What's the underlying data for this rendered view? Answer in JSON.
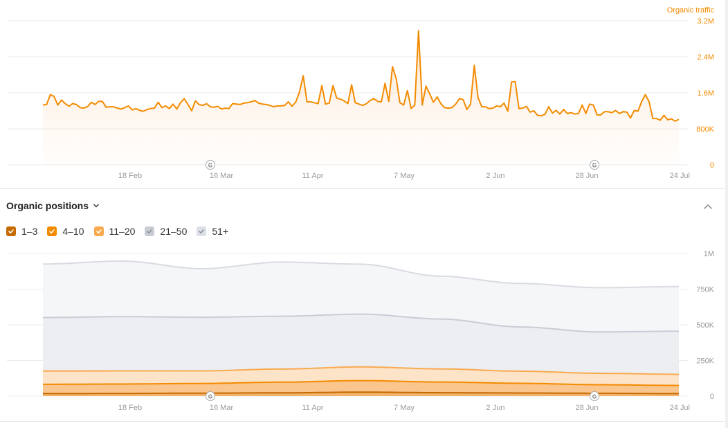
{
  "traffic": {
    "metric_label": "Organic traffic",
    "accent_color": "#f38b00",
    "y_tick_labels": [
      "3.2M",
      "2.4M",
      "1.6M",
      "800K",
      "0"
    ],
    "x_tick_labels": [
      "18 Feb",
      "16 Mar",
      "11 Apr",
      "7 May",
      "2 Jun",
      "28 Jun",
      "24 Jul"
    ],
    "annotation_marker": "G"
  },
  "positions": {
    "title": "Organic positions",
    "legend": [
      {
        "label": "1–3",
        "color": "#c56a00"
      },
      {
        "label": "4–10",
        "color": "#f38b00"
      },
      {
        "label": "11–20",
        "color": "#f9aa4f"
      },
      {
        "label": "21–50",
        "color": "#c8ccd4"
      },
      {
        "label": "51+",
        "color": "#dde0e6"
      }
    ],
    "y_tick_labels": [
      "1M",
      "750K",
      "500K",
      "250K",
      "0"
    ],
    "x_tick_labels": [
      "18 Feb",
      "16 Mar",
      "11 Apr",
      "7 May",
      "2 Jun",
      "28 Jun",
      "24 Jul"
    ],
    "annotation_marker": "G"
  },
  "chart_data": [
    {
      "type": "area",
      "title": "Organic traffic",
      "ylim": [
        0,
        3200000
      ],
      "y_ticks": [
        0,
        800000,
        1600000,
        2400000,
        3200000
      ],
      "x_start": "2024-01-27",
      "x_end": "2024-07-24",
      "grid": true,
      "series": [
        {
          "name": "Organic traffic",
          "values": [
            1330000,
            1340000,
            1560000,
            1520000,
            1330000,
            1440000,
            1360000,
            1300000,
            1360000,
            1340000,
            1270000,
            1260000,
            1290000,
            1390000,
            1340000,
            1410000,
            1410000,
            1280000,
            1290000,
            1290000,
            1260000,
            1240000,
            1270000,
            1310000,
            1220000,
            1250000,
            1210000,
            1190000,
            1230000,
            1250000,
            1260000,
            1390000,
            1270000,
            1310000,
            1250000,
            1350000,
            1240000,
            1380000,
            1470000,
            1340000,
            1200000,
            1420000,
            1340000,
            1320000,
            1360000,
            1290000,
            1280000,
            1300000,
            1240000,
            1260000,
            1250000,
            1360000,
            1350000,
            1340000,
            1370000,
            1380000,
            1400000,
            1430000,
            1370000,
            1350000,
            1340000,
            1320000,
            1290000,
            1310000,
            1310000,
            1320000,
            1400000,
            1300000,
            1400000,
            1620000,
            1980000,
            1400000,
            1400000,
            1380000,
            1360000,
            1760000,
            1350000,
            1370000,
            1760000,
            1480000,
            1460000,
            1420000,
            1360000,
            1780000,
            1380000,
            1350000,
            1320000,
            1360000,
            1430000,
            1470000,
            1410000,
            1400000,
            1810000,
            1410000,
            2180000,
            1910000,
            1380000,
            1330000,
            1650000,
            1250000,
            1330000,
            2980000,
            1330000,
            1750000,
            1580000,
            1390000,
            1510000,
            1360000,
            1270000,
            1260000,
            1270000,
            1350000,
            1470000,
            1450000,
            1230000,
            1350000,
            2210000,
            1490000,
            1290000,
            1290000,
            1250000,
            1260000,
            1310000,
            1290000,
            1370000,
            1190000,
            1840000,
            1850000,
            1250000,
            1260000,
            1300000,
            1170000,
            1200000,
            1100000,
            1090000,
            1120000,
            1290000,
            1150000,
            1210000,
            1130000,
            1230000,
            1140000,
            1160000,
            1130000,
            1140000,
            1330000,
            1140000,
            1350000,
            1330000,
            1110000,
            1110000,
            1180000,
            1180000,
            1160000,
            1210000,
            1140000,
            1180000,
            1170000,
            1040000,
            1210000,
            1190000,
            1410000,
            1560000,
            1400000,
            1030000,
            1030000,
            990000,
            1100000,
            1000000,
            1020000,
            970000,
            1010000
          ]
        }
      ],
      "annotations": [
        "G",
        "G"
      ]
    },
    {
      "type": "area",
      "title": "Organic positions",
      "stacked": true,
      "ylim": [
        0,
        1000000
      ],
      "y_ticks": [
        0,
        250000,
        500000,
        750000,
        1000000
      ],
      "x_start": "2024-01-27",
      "x_end": "2024-07-24",
      "grid": true,
      "series": [
        {
          "name": "1–3",
          "color": "#c56a00",
          "values": [
            18000,
            19000,
            21000,
            23000,
            28000,
            24000,
            22000,
            20000,
            18000
          ]
        },
        {
          "name": "4–10",
          "color": "#f38b00",
          "values": [
            65000,
            66000,
            68000,
            75000,
            81000,
            75000,
            68000,
            60000,
            57000
          ]
        },
        {
          "name": "11–20",
          "color": "#f9aa4f",
          "values": [
            93000,
            92000,
            88000,
            92000,
            96000,
            92000,
            85000,
            80000,
            78000
          ]
        },
        {
          "name": "21–50",
          "color": "#c8ccd4",
          "values": [
            375000,
            380000,
            376000,
            370000,
            370000,
            350000,
            310000,
            290000,
            302000
          ]
        },
        {
          "name": "51+",
          "color": "#dde0e6",
          "values": [
            375000,
            390000,
            340000,
            380000,
            350000,
            300000,
            305000,
            310000,
            313000
          ]
        }
      ],
      "annotations": [
        "G",
        "G"
      ]
    }
  ]
}
